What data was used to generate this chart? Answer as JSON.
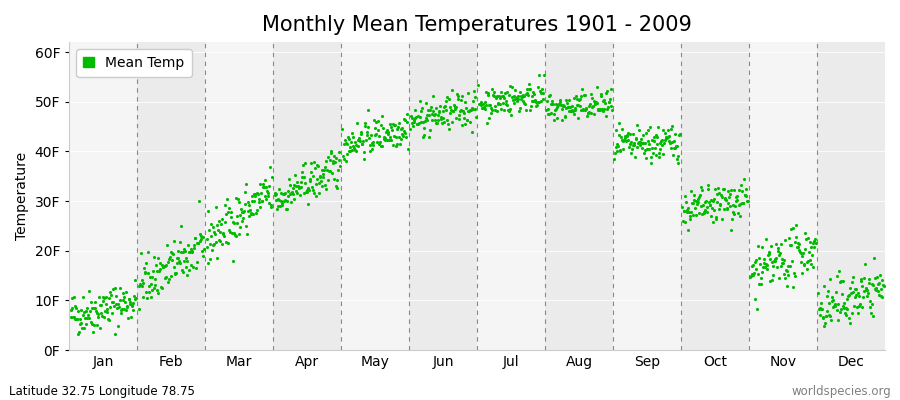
{
  "title": "Monthly Mean Temperatures 1901 - 2009",
  "ylabel": "Temperature",
  "xlabel": "",
  "ylim": [
    0,
    62
  ],
  "yticks": [
    0,
    10,
    20,
    30,
    40,
    50,
    60
  ],
  "ytick_labels": [
    "0F",
    "10F",
    "20F",
    "30F",
    "40F",
    "50F",
    "60F"
  ],
  "months": [
    "Jan",
    "Feb",
    "Mar",
    "Apr",
    "May",
    "Jun",
    "Jul",
    "Aug",
    "Sep",
    "Oct",
    "Nov",
    "Dec"
  ],
  "month_means_start": [
    7.0,
    13.0,
    22.0,
    30.0,
    41.5,
    46.0,
    49.5,
    48.5,
    41.0,
    28.0,
    15.0,
    8.0
  ],
  "month_means_end": [
    10.0,
    21.0,
    32.0,
    37.0,
    45.0,
    49.0,
    51.5,
    49.5,
    42.0,
    30.5,
    21.0,
    13.0
  ],
  "month_noise": [
    2.2,
    2.5,
    2.5,
    2.0,
    1.8,
    1.8,
    1.5,
    1.5,
    1.8,
    2.0,
    2.5,
    2.5
  ],
  "n_years": 109,
  "dot_color": "#00bb00",
  "dot_size": 5,
  "bg_color_odd": "#ebebeb",
  "bg_color_even": "#f5f5f5",
  "dash_color": "#888888",
  "legend_label": "Mean Temp",
  "footer_left": "Latitude 32.75 Longitude 78.75",
  "footer_right": "worldspecies.org",
  "title_fontsize": 15,
  "axis_fontsize": 10,
  "tick_fontsize": 10,
  "footer_fontsize": 8.5
}
